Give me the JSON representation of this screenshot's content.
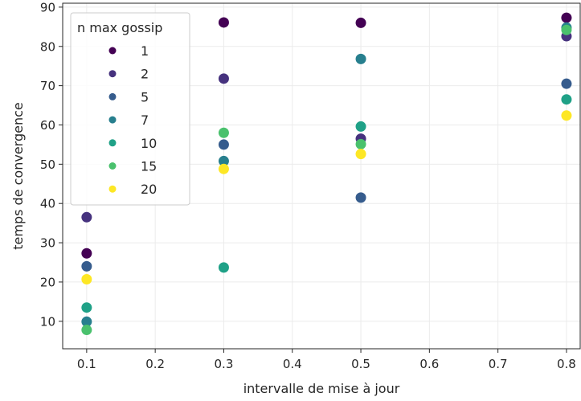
{
  "chart_data": {
    "type": "scatter",
    "title": "",
    "xlabel": "intervalle de mise à jour",
    "ylabel": "temps de convergence",
    "xlim": [
      0.065,
      0.82
    ],
    "ylim": [
      3,
      91
    ],
    "x_ticks": [
      0.1,
      0.2,
      0.3,
      0.4,
      0.5,
      0.6,
      0.7,
      0.8
    ],
    "y_ticks": [
      10,
      20,
      30,
      40,
      50,
      60,
      70,
      80,
      90
    ],
    "grid": true,
    "legend": {
      "title": "n max gossip",
      "placement": "top-left"
    },
    "series": [
      {
        "name": "1",
        "color": "#440154",
        "points": [
          [
            0.1,
            27.3
          ],
          [
            0.3,
            86.1
          ],
          [
            0.5,
            86.0
          ],
          [
            0.8,
            87.3
          ]
        ]
      },
      {
        "name": "2",
        "color": "#46327e",
        "points": [
          [
            0.1,
            36.5
          ],
          [
            0.3,
            71.8
          ],
          [
            0.5,
            56.5
          ],
          [
            0.8,
            82.6
          ]
        ]
      },
      {
        "name": "5",
        "color": "#365c8d",
        "points": [
          [
            0.1,
            24.0
          ],
          [
            0.3,
            55.0
          ],
          [
            0.5,
            41.5
          ],
          [
            0.8,
            70.5
          ]
        ]
      },
      {
        "name": "7",
        "color": "#277f8e",
        "points": [
          [
            0.1,
            9.9
          ],
          [
            0.3,
            50.8
          ],
          [
            0.5,
            76.8
          ],
          [
            0.8,
            84.8
          ]
        ]
      },
      {
        "name": "10",
        "color": "#1fa187",
        "points": [
          [
            0.1,
            13.5
          ],
          [
            0.3,
            23.7
          ],
          [
            0.5,
            59.6
          ],
          [
            0.8,
            66.5
          ]
        ]
      },
      {
        "name": "15",
        "color": "#4ac16d",
        "points": [
          [
            0.1,
            7.8
          ],
          [
            0.3,
            58.0
          ],
          [
            0.5,
            55.1
          ],
          [
            0.8,
            84.2
          ]
        ]
      },
      {
        "name": "20",
        "color": "#fde725",
        "points": [
          [
            0.1,
            20.7
          ],
          [
            0.3,
            48.8
          ],
          [
            0.5,
            52.6
          ],
          [
            0.8,
            62.4
          ]
        ]
      }
    ]
  }
}
